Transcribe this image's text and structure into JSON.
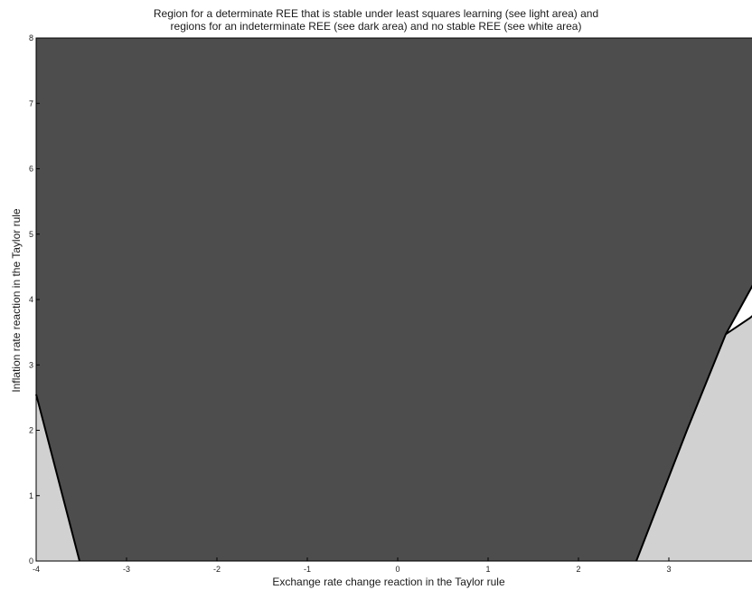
{
  "chart_data": {
    "type": "area",
    "title": "Region for a determinate REE that is stable under least squares learning (see light area) and",
    "subtitle": "regions for an indeterminate REE (see dark area) and no stable REE (see white area)",
    "xlabel": "Exchange rate change reaction in the Taylor rule",
    "ylabel": "Inflation rate reaction in the Taylor rule",
    "xlim": [
      -4,
      4
    ],
    "ylim": [
      0,
      8
    ],
    "x_ticks": [
      "-4",
      "-3",
      "-2",
      "-1",
      "0",
      "1",
      "2",
      "3"
    ],
    "y_ticks": [
      "0",
      "1",
      "2",
      "3",
      "4",
      "5",
      "6",
      "7",
      "8"
    ],
    "regions": [
      {
        "name": "dark",
        "color": "#4d4d4d",
        "points": [
          [
            -4,
            8
          ],
          [
            4,
            8
          ],
          [
            4,
            4.4
          ],
          [
            3.63,
            3.47
          ],
          [
            2.64,
            0
          ],
          [
            -3.52,
            0
          ],
          [
            -4,
            2.55
          ]
        ]
      },
      {
        "name": "light",
        "color": "#d1d1d1",
        "points": [
          [
            -4,
            0
          ],
          [
            -3.52,
            0
          ],
          [
            -4,
            2.55
          ]
        ]
      },
      {
        "name": "light",
        "color": "#d1d1d1",
        "points": [
          [
            2.64,
            0
          ],
          [
            4,
            0
          ],
          [
            4,
            3.84
          ],
          [
            3.9,
            3.72
          ],
          [
            3.63,
            3.47
          ]
        ]
      },
      {
        "name": "white",
        "color": "#ffffff",
        "points": [
          [
            3.63,
            3.47
          ],
          [
            4,
            4.4
          ],
          [
            4,
            3.84
          ],
          [
            3.9,
            3.72
          ]
        ]
      }
    ],
    "boundaries": [
      [
        [
          -4,
          2.55
        ],
        [
          -3.52,
          0
        ]
      ],
      [
        [
          2.64,
          0
        ],
        [
          3.2,
          2.0
        ],
        [
          3.63,
          3.47
        ],
        [
          4,
          4.4
        ]
      ],
      [
        [
          3.63,
          3.47
        ],
        [
          3.9,
          3.72
        ],
        [
          4,
          3.84
        ]
      ]
    ]
  }
}
